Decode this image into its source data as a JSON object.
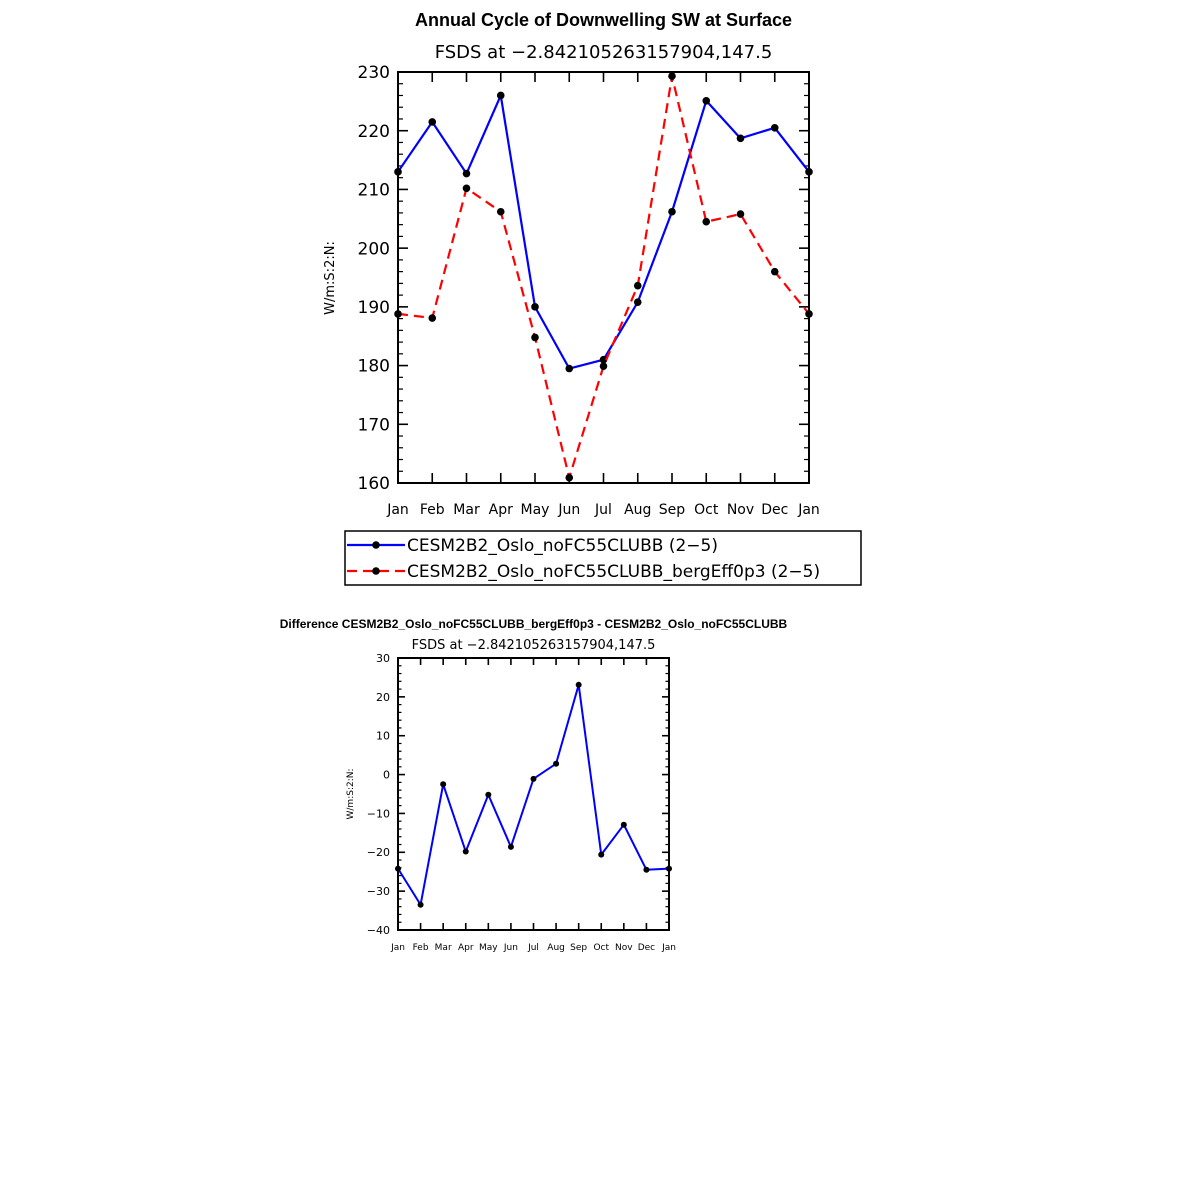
{
  "chart_data": [
    {
      "type": "line",
      "title": "Annual Cycle of Downwelling SW at Surface",
      "subtitle": "FSDS at −2.842105263157904,147.5",
      "xlabel": "",
      "ylabel": "W/m:S:2:N:",
      "categories": [
        "Jan",
        "Feb",
        "Mar",
        "Apr",
        "May",
        "Jun",
        "Jul",
        "Aug",
        "Sep",
        "Oct",
        "Nov",
        "Dec",
        "Jan"
      ],
      "ylim": [
        160,
        230
      ],
      "yticks": [
        160,
        170,
        180,
        190,
        200,
        210,
        220,
        230
      ],
      "legend_position": "bottom",
      "series": [
        {
          "name": "CESM2B2_Oslo_noFC55CLUBB (2−5)",
          "color": "#0000ff",
          "dash": "solid",
          "values": [
            213.0,
            221.5,
            212.7,
            226.0,
            190.0,
            179.5,
            181.0,
            190.8,
            206.2,
            225.1,
            218.7,
            220.5,
            213.0
          ]
        },
        {
          "name": "CESM2B2_Oslo_noFC55CLUBB_bergEff0p3 (2−5)",
          "color": "#ff0000",
          "dash": "dashed",
          "values": [
            188.8,
            188.1,
            210.2,
            206.2,
            184.8,
            160.9,
            179.9,
            193.6,
            229.3,
            204.5,
            205.8,
            196.0,
            188.8
          ]
        }
      ]
    },
    {
      "type": "line",
      "title": "Difference CESM2B2_Oslo_noFC55CLUBB_bergEff0p3 - CESM2B2_Oslo_noFC55CLUBB",
      "subtitle": "FSDS at −2.842105263157904,147.5",
      "xlabel": "",
      "ylabel": "W/m:S:2:N:",
      "categories": [
        "Jan",
        "Feb",
        "Mar",
        "Apr",
        "May",
        "Jun",
        "Jul",
        "Aug",
        "Sep",
        "Oct",
        "Nov",
        "Dec",
        "Jan"
      ],
      "ylim": [
        -40,
        30
      ],
      "yticks": [
        -40,
        -30,
        -20,
        -10,
        0,
        10,
        20,
        30
      ],
      "series": [
        {
          "color": "#0000ff",
          "dash": "solid",
          "values": [
            -24.2,
            -33.5,
            -2.5,
            -19.8,
            -5.2,
            -18.6,
            -1.1,
            2.8,
            23.1,
            -20.6,
            -12.9,
            -24.5,
            -24.2
          ]
        }
      ]
    }
  ]
}
